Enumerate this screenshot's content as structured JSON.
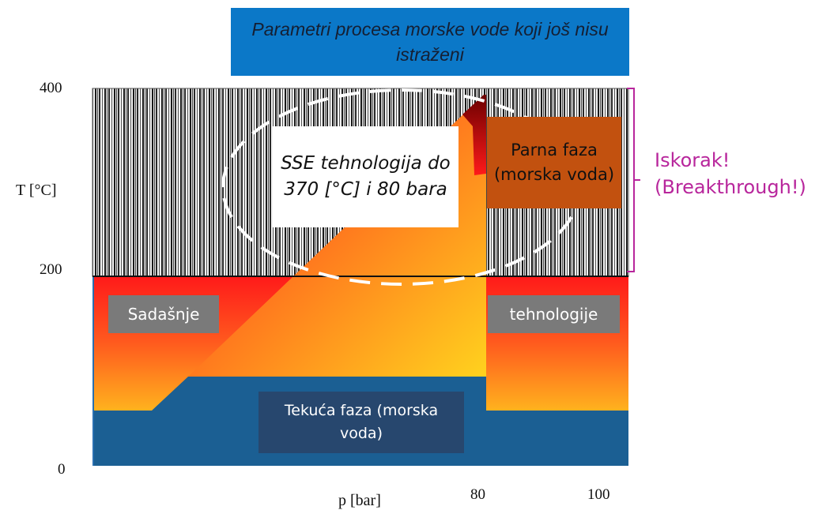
{
  "title": "Parametri procesa morske vode koji još nisu istraženi",
  "y_axis": {
    "label": "T [°C]",
    "ticks": [
      "400",
      "200",
      "0"
    ]
  },
  "x_axis": {
    "label": "p [bar]",
    "ticks": [
      "80",
      "100"
    ]
  },
  "regions": {
    "sse_technology": "SSE tehnologija do 370 [°C] i 80 bara",
    "vapor_phase": "Parna faza (morska voda)",
    "current_left": "Sadašnje",
    "current_right": "tehnologije",
    "liquid_phase": "Tekuća faza (morska voda)"
  },
  "annotation": {
    "line1": "Iskorak!",
    "line2": "(Breakthrough!)"
  },
  "colors": {
    "title_bg": "#0b78c8",
    "liquid": "#1b5f93",
    "vapor_label_bg": "#c2510f",
    "label_grey": "#7a7a7a",
    "liquid_label_bg": "#27476e",
    "bracket": "#b8269c"
  }
}
